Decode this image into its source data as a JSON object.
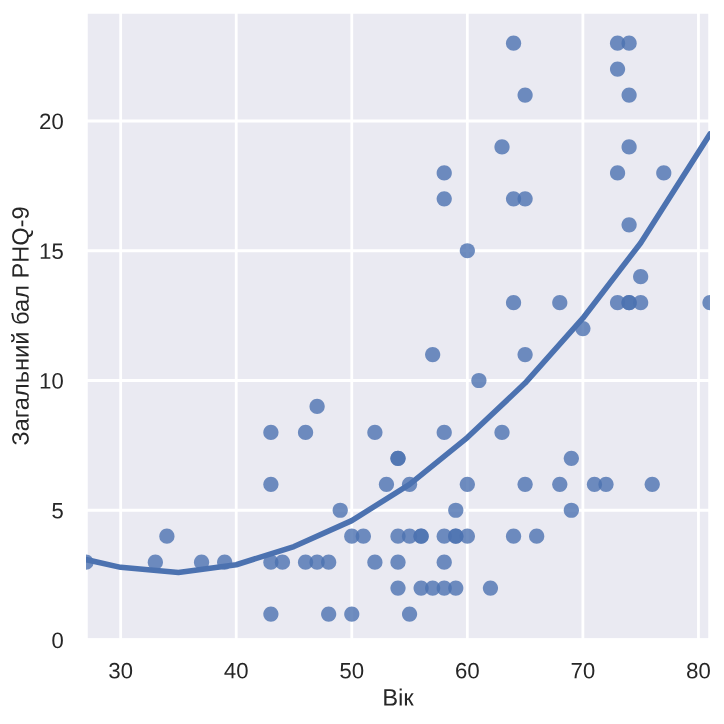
{
  "chart_data": {
    "type": "scatter",
    "xlabel": "Вік",
    "ylabel": "Загальний бал PHQ-9",
    "xlim": [
      27,
      81
    ],
    "ylim": [
      0,
      24.2
    ],
    "xticks": [
      30,
      40,
      50,
      60,
      70,
      80
    ],
    "yticks": [
      0,
      5,
      10,
      15,
      20
    ],
    "grid": true,
    "series": [
      {
        "color": "#4c72b0",
        "marker": "circle",
        "x": [
          27,
          33,
          34,
          37,
          39,
          43,
          43,
          43,
          43,
          44,
          46,
          46,
          47,
          47,
          48,
          48,
          49,
          50,
          50,
          51,
          52,
          52,
          53,
          54,
          54,
          54,
          54,
          54,
          55,
          55,
          55,
          56,
          56,
          56,
          57,
          57,
          58,
          58,
          58,
          58,
          58,
          58,
          59,
          59,
          59,
          59,
          60,
          60,
          60,
          61,
          62,
          63,
          63,
          64,
          64,
          64,
          64,
          65,
          65,
          65,
          65,
          66,
          68,
          68,
          69,
          69,
          70,
          71,
          72,
          73,
          73,
          73,
          73,
          74,
          74,
          74,
          74,
          74,
          74,
          75,
          75,
          76,
          77,
          81
        ],
        "values": [
          3,
          3,
          4,
          3,
          3,
          1,
          3,
          6,
          8,
          3,
          3,
          8,
          3,
          9,
          1,
          3,
          5,
          1,
          4,
          4,
          3,
          8,
          6,
          7,
          4,
          3,
          2,
          7,
          1,
          6,
          4,
          2,
          4,
          4,
          11,
          2,
          8,
          4,
          3,
          2,
          17,
          18,
          5,
          4,
          2,
          4,
          6,
          4,
          15,
          10,
          2,
          8,
          19,
          4,
          23,
          17,
          13,
          11,
          6,
          17,
          21,
          4,
          6,
          13,
          7,
          5,
          12,
          6,
          6,
          13,
          23,
          22,
          18,
          23,
          21,
          19,
          16,
          13,
          13,
          13,
          14,
          6,
          18,
          13
        ]
      },
      {
        "type": "line",
        "color": "#4c72b0",
        "line_style": "solid",
        "marker": "none",
        "x": [
          27,
          30,
          35,
          40,
          45,
          50,
          55,
          60,
          65,
          70,
          75,
          81
        ],
        "values": [
          3.1,
          2.8,
          2.6,
          2.9,
          3.6,
          4.6,
          6.0,
          7.8,
          9.9,
          12.4,
          15.3,
          19.5
        ]
      }
    ]
  }
}
